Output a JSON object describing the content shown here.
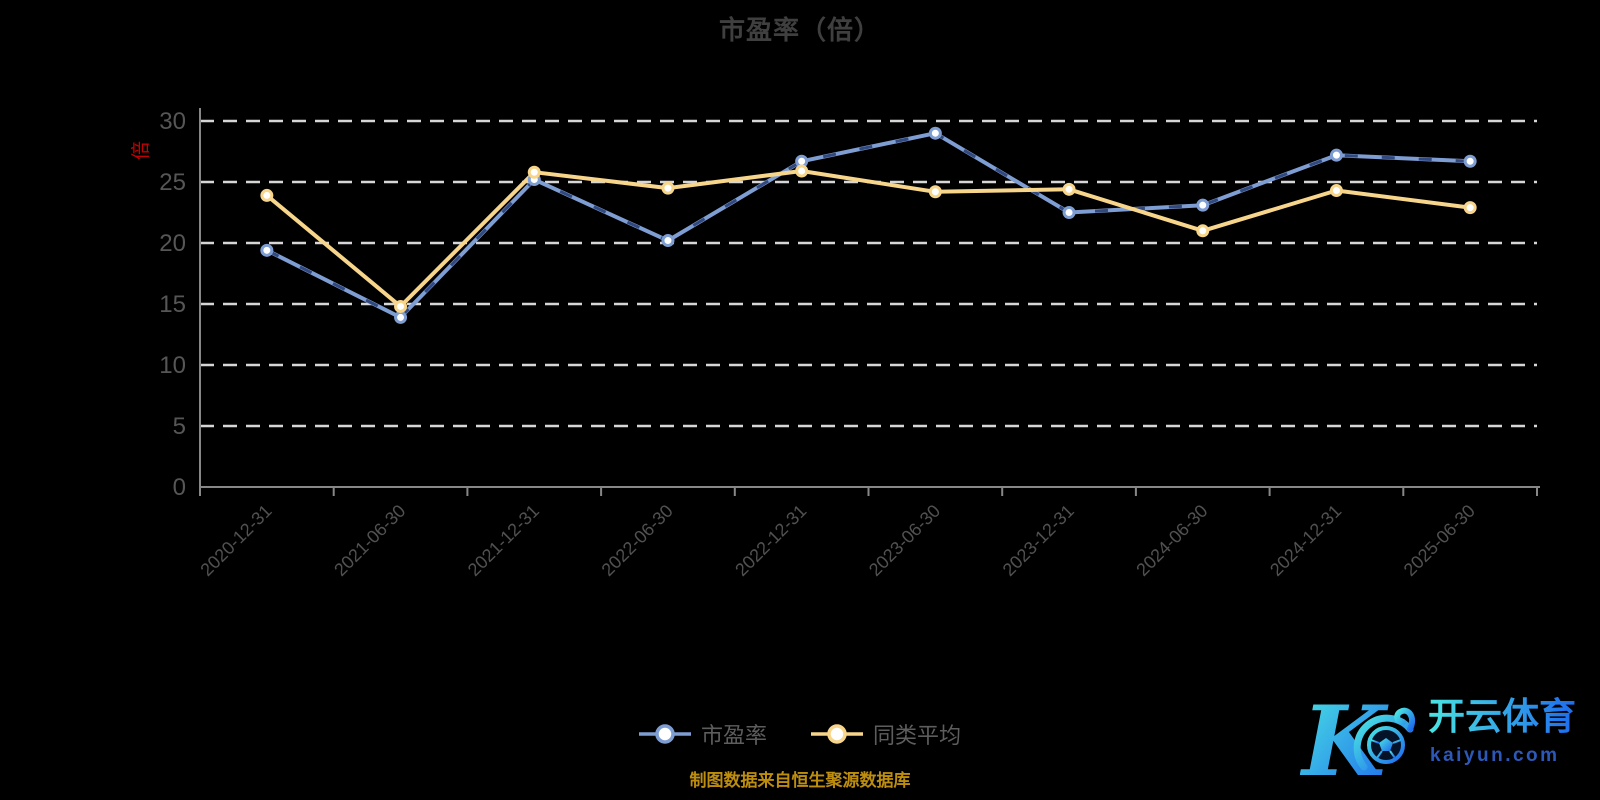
{
  "chart_data": {
    "type": "line",
    "title": "市盈率（倍）",
    "categories": [
      "2020-12-31",
      "2021-06-30",
      "2021-12-31",
      "2022-06-30",
      "2022-12-31",
      "2023-06-30",
      "2023-12-31",
      "2024-06-30",
      "2024-12-31",
      "2025-06-30"
    ],
    "series": [
      {
        "name": "市盈率",
        "color": "#7E9ED3",
        "dash_overlay_color": "#31497F",
        "values": [
          19.4,
          13.9,
          25.2,
          20.2,
          26.7,
          29.0,
          22.5,
          23.1,
          27.2,
          26.7
        ]
      },
      {
        "name": "同类平均",
        "color": "#F7D58A",
        "values": [
          23.9,
          14.8,
          25.8,
          24.5,
          25.9,
          24.2,
          24.4,
          21.0,
          24.3,
          22.9
        ]
      }
    ],
    "ylim": [
      0,
      30
    ],
    "yticks": [
      0,
      5,
      10,
      15,
      20,
      25,
      30
    ],
    "yaxis_name": "倍",
    "yaxis_name_color": "#C40000",
    "xlabel_rotation": -45,
    "grid": "horizontal-dashed",
    "gridline_color": "#D6D6D6",
    "axis_color": "#878787",
    "ytick_label_color": "#565656",
    "xtick_label_color": "#515151",
    "title_color": "#3F3F3F",
    "legend_position": "bottom-center",
    "legend_text_color": "#5D5D5D",
    "marker_style": "circle-white-fill"
  },
  "source_note": {
    "text": "制图数据来自恒生聚源数据库",
    "color": "#BD8D0E"
  },
  "logo": {
    "brand": "开云体育",
    "domain": "kaiyun.com",
    "gradient_start": "#4BE5E2",
    "gradient_end": "#1E6BEE",
    "domain_color": "#2C58B8"
  }
}
